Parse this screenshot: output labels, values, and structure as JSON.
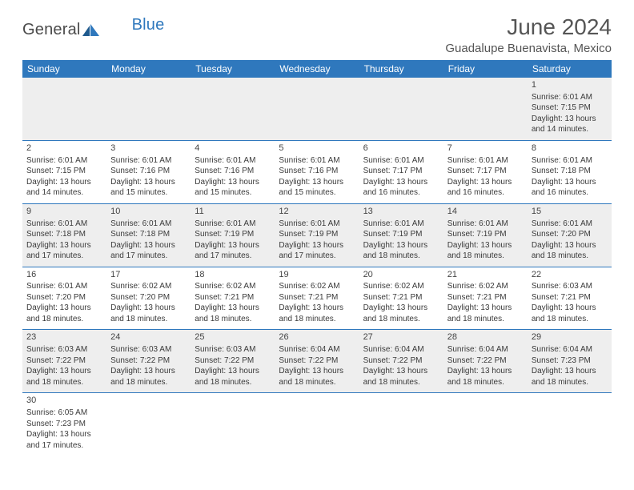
{
  "logo": {
    "text1": "General",
    "text2": "Blue"
  },
  "title": "June 2024",
  "location": "Guadalupe Buenavista, Mexico",
  "colors": {
    "header_bg": "#2f78bd",
    "header_text": "#ffffff",
    "row_even_bg": "#eeeeee",
    "row_odd_bg": "#ffffff",
    "border": "#2f78bd",
    "text": "#3a3a3a"
  },
  "daysOfWeek": [
    "Sunday",
    "Monday",
    "Tuesday",
    "Wednesday",
    "Thursday",
    "Friday",
    "Saturday"
  ],
  "firstDayOffset": 6,
  "daysInMonth": 30,
  "days": {
    "1": {
      "sunrise": "6:01 AM",
      "sunset": "7:15 PM",
      "daylight": "13 hours and 14 minutes."
    },
    "2": {
      "sunrise": "6:01 AM",
      "sunset": "7:15 PM",
      "daylight": "13 hours and 14 minutes."
    },
    "3": {
      "sunrise": "6:01 AM",
      "sunset": "7:16 PM",
      "daylight": "13 hours and 15 minutes."
    },
    "4": {
      "sunrise": "6:01 AM",
      "sunset": "7:16 PM",
      "daylight": "13 hours and 15 minutes."
    },
    "5": {
      "sunrise": "6:01 AM",
      "sunset": "7:16 PM",
      "daylight": "13 hours and 15 minutes."
    },
    "6": {
      "sunrise": "6:01 AM",
      "sunset": "7:17 PM",
      "daylight": "13 hours and 16 minutes."
    },
    "7": {
      "sunrise": "6:01 AM",
      "sunset": "7:17 PM",
      "daylight": "13 hours and 16 minutes."
    },
    "8": {
      "sunrise": "6:01 AM",
      "sunset": "7:18 PM",
      "daylight": "13 hours and 16 minutes."
    },
    "9": {
      "sunrise": "6:01 AM",
      "sunset": "7:18 PM",
      "daylight": "13 hours and 17 minutes."
    },
    "10": {
      "sunrise": "6:01 AM",
      "sunset": "7:18 PM",
      "daylight": "13 hours and 17 minutes."
    },
    "11": {
      "sunrise": "6:01 AM",
      "sunset": "7:19 PM",
      "daylight": "13 hours and 17 minutes."
    },
    "12": {
      "sunrise": "6:01 AM",
      "sunset": "7:19 PM",
      "daylight": "13 hours and 17 minutes."
    },
    "13": {
      "sunrise": "6:01 AM",
      "sunset": "7:19 PM",
      "daylight": "13 hours and 18 minutes."
    },
    "14": {
      "sunrise": "6:01 AM",
      "sunset": "7:19 PM",
      "daylight": "13 hours and 18 minutes."
    },
    "15": {
      "sunrise": "6:01 AM",
      "sunset": "7:20 PM",
      "daylight": "13 hours and 18 minutes."
    },
    "16": {
      "sunrise": "6:01 AM",
      "sunset": "7:20 PM",
      "daylight": "13 hours and 18 minutes."
    },
    "17": {
      "sunrise": "6:02 AM",
      "sunset": "7:20 PM",
      "daylight": "13 hours and 18 minutes."
    },
    "18": {
      "sunrise": "6:02 AM",
      "sunset": "7:21 PM",
      "daylight": "13 hours and 18 minutes."
    },
    "19": {
      "sunrise": "6:02 AM",
      "sunset": "7:21 PM",
      "daylight": "13 hours and 18 minutes."
    },
    "20": {
      "sunrise": "6:02 AM",
      "sunset": "7:21 PM",
      "daylight": "13 hours and 18 minutes."
    },
    "21": {
      "sunrise": "6:02 AM",
      "sunset": "7:21 PM",
      "daylight": "13 hours and 18 minutes."
    },
    "22": {
      "sunrise": "6:03 AM",
      "sunset": "7:21 PM",
      "daylight": "13 hours and 18 minutes."
    },
    "23": {
      "sunrise": "6:03 AM",
      "sunset": "7:22 PM",
      "daylight": "13 hours and 18 minutes."
    },
    "24": {
      "sunrise": "6:03 AM",
      "sunset": "7:22 PM",
      "daylight": "13 hours and 18 minutes."
    },
    "25": {
      "sunrise": "6:03 AM",
      "sunset": "7:22 PM",
      "daylight": "13 hours and 18 minutes."
    },
    "26": {
      "sunrise": "6:04 AM",
      "sunset": "7:22 PM",
      "daylight": "13 hours and 18 minutes."
    },
    "27": {
      "sunrise": "6:04 AM",
      "sunset": "7:22 PM",
      "daylight": "13 hours and 18 minutes."
    },
    "28": {
      "sunrise": "6:04 AM",
      "sunset": "7:22 PM",
      "daylight": "13 hours and 18 minutes."
    },
    "29": {
      "sunrise": "6:04 AM",
      "sunset": "7:23 PM",
      "daylight": "13 hours and 18 minutes."
    },
    "30": {
      "sunrise": "6:05 AM",
      "sunset": "7:23 PM",
      "daylight": "13 hours and 17 minutes."
    }
  },
  "labels": {
    "sunrise": "Sunrise:",
    "sunset": "Sunset:",
    "daylight": "Daylight:"
  }
}
